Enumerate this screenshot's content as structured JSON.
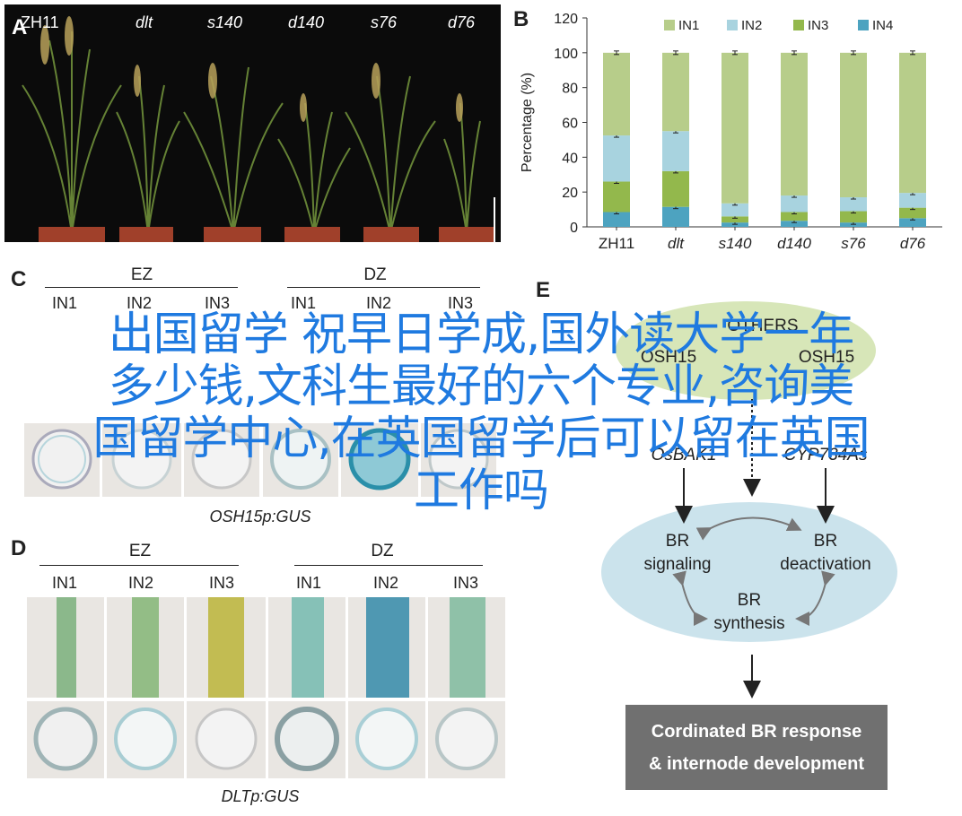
{
  "panels": {
    "a": {
      "letter": "A",
      "labels": [
        "ZH11",
        "dlt",
        "s140",
        "d140",
        "s76",
        "d76"
      ]
    },
    "b": {
      "letter": "B"
    },
    "c": {
      "letter": "C",
      "caption": "OSH15p:GUS"
    },
    "d": {
      "letter": "D",
      "caption": "DLTp:GUS"
    },
    "e": {
      "letter": "E"
    }
  },
  "zones": {
    "ez": "EZ",
    "dz": "DZ",
    "in1": "IN1",
    "in2": "IN2",
    "in3": "IN3"
  },
  "chart_data": {
    "type": "bar",
    "stacked": true,
    "categories": [
      "ZH11",
      "dlt",
      "s140",
      "d140",
      "s76",
      "d76"
    ],
    "category_style": [
      "upright",
      "italic",
      "italic",
      "italic",
      "italic",
      "italic"
    ],
    "ylabel": "Percentage (%)",
    "ylim": [
      0,
      120
    ],
    "yticks": [
      0,
      20,
      40,
      60,
      80,
      100,
      120
    ],
    "grid": false,
    "legend_position": "top",
    "series": [
      {
        "name": "IN4",
        "color": "#4da3c0",
        "values": [
          8.5,
          11.5,
          2.5,
          3.5,
          2.5,
          5.0
        ]
      },
      {
        "name": "IN3",
        "color": "#93b84c",
        "values": [
          17.5,
          20.5,
          3.5,
          5.0,
          6.5,
          6.0
        ]
      },
      {
        "name": "IN2",
        "color": "#a8d3df",
        "values": [
          26.5,
          23.0,
          7.5,
          9.5,
          8.0,
          8.5
        ]
      },
      {
        "name": "IN1",
        "color": "#b7cd8a",
        "values": [
          47.5,
          45.0,
          86.5,
          82.0,
          83.0,
          80.5
        ]
      }
    ]
  },
  "diagram_e": {
    "others": "OTHERS",
    "osh15": "OSH15",
    "osh15_2": "OSH15",
    "osbak1": "OsBAK1",
    "cyp": "CYP734As",
    "br_signaling_1": "BR",
    "br_signaling_2": "signaling",
    "br_deact_1": "BR",
    "br_deact_2": "deactivation",
    "br_syn_1": "BR",
    "br_syn_2": "synthesis",
    "response_1": "Cordinated BR response",
    "response_2": "& internode development"
  },
  "overlay": {
    "line1": "出国留学 祝早日学成,国外读大学一年",
    "line2": "多少钱,文科生最好的六个专业,咨询美",
    "line3": "国留学中心,在英国留学后可以留在英国",
    "line4": "工作吗"
  },
  "colors": {
    "overlay_text": "#1f7ae0",
    "ellipse_green": "#d7e6b8",
    "ellipse_blue": "#cbe3ec"
  }
}
